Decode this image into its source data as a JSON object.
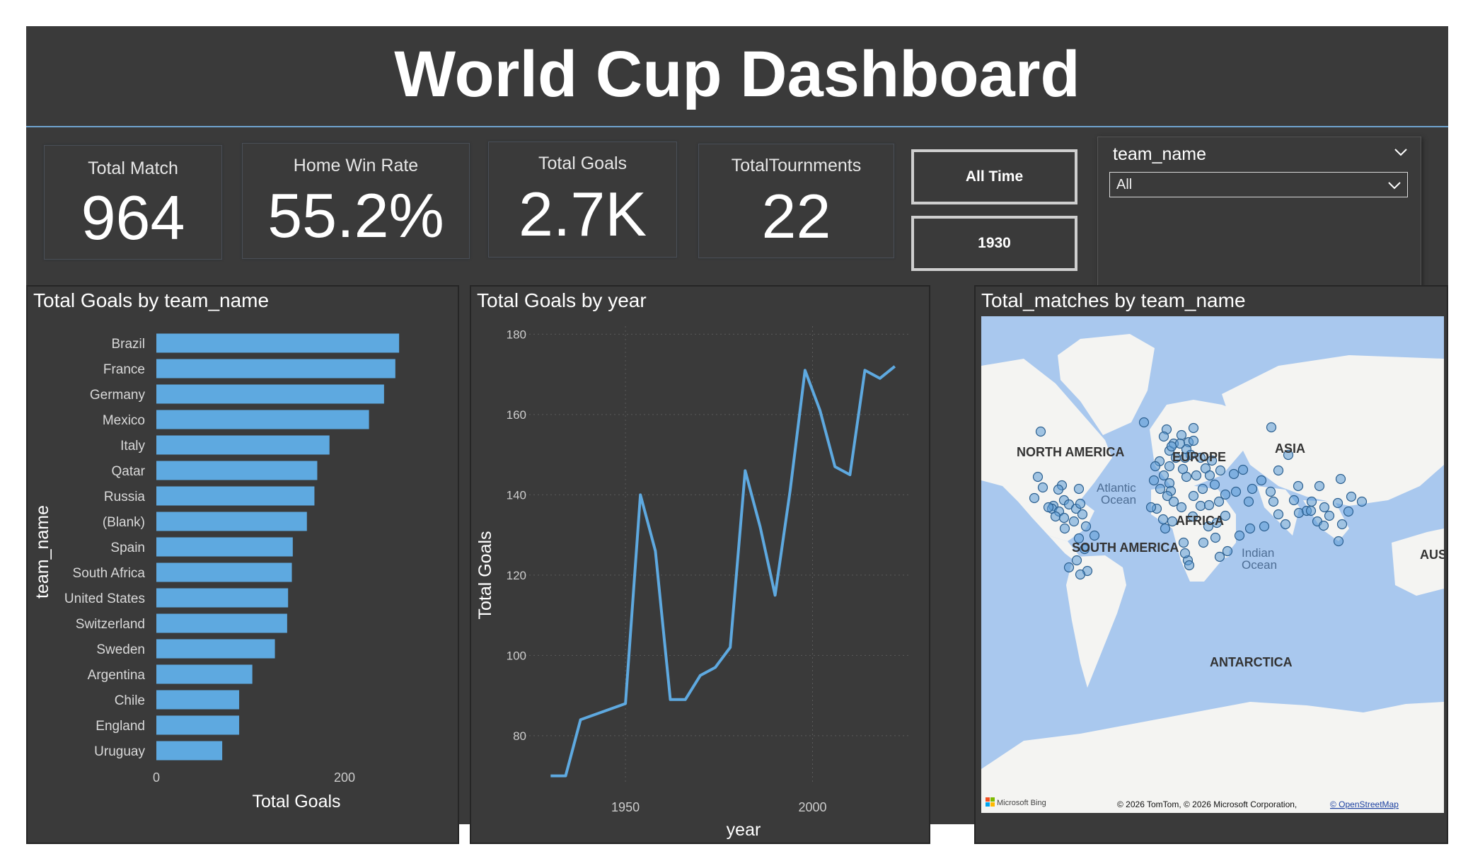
{
  "header": {
    "title": "World Cup Dashboard"
  },
  "kpis": [
    {
      "label": "Total Match",
      "value": "964"
    },
    {
      "label": "Home Win Rate",
      "value": "55.2%"
    },
    {
      "label": "Total Goals",
      "value": "2.7K"
    },
    {
      "label": "TotalTournments",
      "value": "22"
    }
  ],
  "filters": {
    "all_time_label": "All Time",
    "year_label": "1930"
  },
  "slicer": {
    "title": "team_name",
    "selected": "All"
  },
  "panels": {
    "bar_title": "Total Goals by team_name",
    "line_title": "Total Goals by year",
    "map_title": "Total_matches by team_name"
  },
  "map": {
    "labels": {
      "north_america": "NORTH AMERICA",
      "europe": "EUROPE",
      "asia": "ASIA",
      "africa": "AFRICA",
      "south_america": "SOUTH AMERICA",
      "antarctica": "ANTARCTICA",
      "australia": "AUS"
    },
    "oceans": {
      "atlantic_1": "Atlantic",
      "atlantic_2": "Ocean",
      "indian_1": "Indian",
      "indian_2": "Ocean"
    },
    "bing": "Microsoft Bing",
    "attribution": "© 2026 TomTom, © 2026 Microsoft Corporation,",
    "attribution_link": "© OpenStreetMap",
    "bubble_color": "#5b9bd5"
  },
  "colors": {
    "background": "#3a3a3a",
    "bar": "#5ea9e0",
    "line": "#5ea9e0",
    "accent_line": "#6fa3cf"
  },
  "chart_data": [
    {
      "type": "bar",
      "title": "Total Goals by team_name",
      "xlabel": "Total Goals",
      "ylabel": "team_name",
      "xlim": [
        0,
        300
      ],
      "xticks": [
        0,
        200
      ],
      "categories": [
        "Brazil",
        "France",
        "Germany",
        "Mexico",
        "Italy",
        "Qatar",
        "Russia",
        "(Blank)",
        "Spain",
        "South Africa",
        "United States",
        "Switzerland",
        "Sweden",
        "Argentina",
        "Chile",
        "England",
        "Uruguay"
      ],
      "values": [
        258,
        254,
        242,
        226,
        184,
        171,
        168,
        160,
        145,
        144,
        140,
        139,
        126,
        102,
        88,
        88,
        70
      ]
    },
    {
      "type": "line",
      "title": "Total Goals by year",
      "xlabel": "year",
      "ylabel": "Total Goals",
      "xlim": [
        1922,
        2026
      ],
      "ylim": [
        68,
        182
      ],
      "xticks": [
        1950,
        2000
      ],
      "yticks": [
        80,
        100,
        120,
        140,
        160,
        180
      ],
      "grid": true,
      "x": [
        1930,
        1934,
        1938,
        1950,
        1954,
        1958,
        1962,
        1966,
        1970,
        1974,
        1978,
        1982,
        1986,
        1990,
        1994,
        1998,
        2002,
        2006,
        2010,
        2014,
        2018,
        2022
      ],
      "y": [
        70,
        70,
        84,
        88,
        140,
        126,
        89,
        89,
        95,
        97,
        102,
        146,
        132,
        115,
        141,
        171,
        161,
        147,
        145,
        171,
        169,
        172
      ]
    }
  ]
}
